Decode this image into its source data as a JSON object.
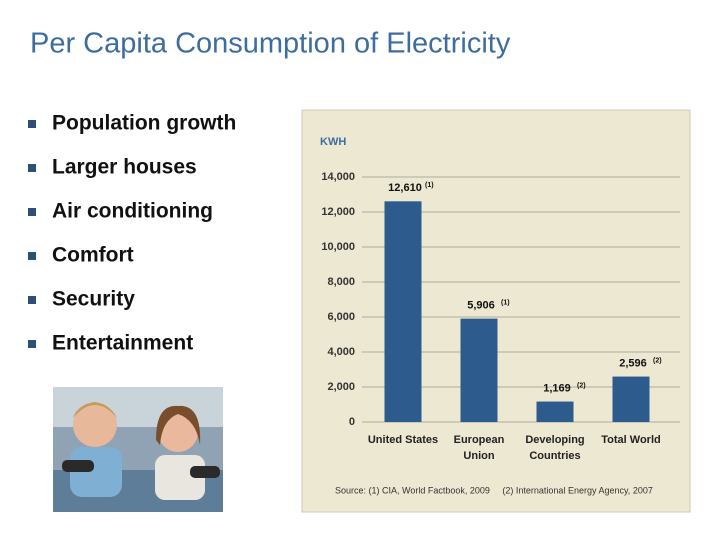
{
  "title": "Per Capita Consumption of Electricity",
  "bullets": [
    "Population growth",
    "Larger houses",
    "Air conditioning",
    "Comfort",
    "Security",
    "Entertainment"
  ],
  "chart_data": {
    "type": "bar",
    "y_label": "KWH",
    "categories": [
      [
        "United States"
      ],
      [
        "European",
        "Union"
      ],
      [
        "Developing",
        "Countries"
      ],
      [
        "Total World"
      ]
    ],
    "values": [
      12610,
      5906,
      1169,
      2596
    ],
    "value_labels": [
      "12,610",
      "5,906",
      "1,169",
      "2,596"
    ],
    "value_label_notes": [
      "(1)",
      "(1)",
      "(2)",
      "(2)"
    ],
    "color": "#2d5b8d",
    "ylim": [
      0,
      14000
    ],
    "yticks": [
      0,
      {
        "value": 2000,
        "label": "2,000"
      },
      {
        "value": 4000,
        "label": "4,000"
      },
      {
        "value": 6000,
        "label": "6,000"
      },
      {
        "value": 8000,
        "label": "8,000"
      },
      {
        "value": 10000,
        "label": "10,000"
      },
      {
        "value": 12000,
        "label": "12,000"
      },
      {
        "value": 14000,
        "label": "14,000"
      }
    ],
    "grid": true,
    "source": "Source: (1) CIA, World Factbook, 2009     (2) International Energy Agency, 2007"
  }
}
